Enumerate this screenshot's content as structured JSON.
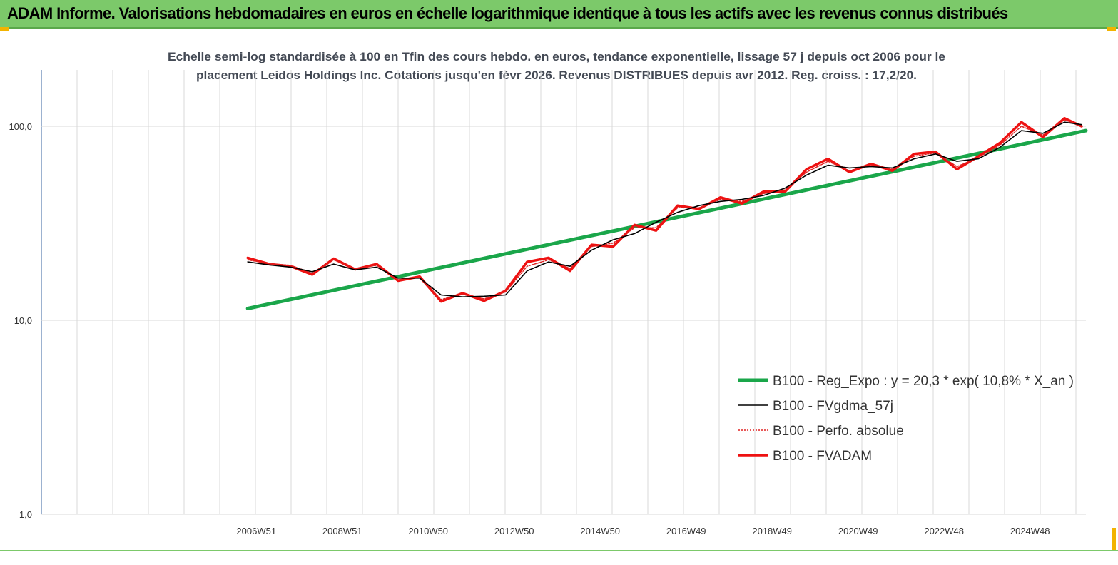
{
  "banner": {
    "title": "ADAM Informe. Valorisations hebdomadaires en euros en échelle logarithmique identique à tous les actifs avec les revenus connus distribués"
  },
  "colors": {
    "banner_bg": "#7cc96a",
    "regression": "#1aa64a",
    "moving_average": "#000000",
    "absolute_perf": "#e02020",
    "fvadam": "#ee1111",
    "corner": "#f2b300"
  },
  "chart_data": {
    "type": "line",
    "subtitle_lines": [
      "Echelle semi-log standardisée à 100 en Tfin des cours hebdo. en euros, tendance exponentielle, lissage 57 j depuis oct 2006 pour le",
      "placement Leidos Holdings Inc. Cotations jusqu'en févr 2026. Revenus DISTRIBUES depuis avr 2012. Reg. croiss. : 17,2/20."
    ],
    "y_scale": "log",
    "ylim": [
      1,
      200
    ],
    "y_ticks": [
      {
        "value": 1,
        "label": "1,0"
      },
      {
        "value": 10,
        "label": "10,0"
      },
      {
        "value": 100,
        "label": "100,0"
      }
    ],
    "xlim": [
      2002,
      2026.3
    ],
    "x_ticks": [
      {
        "x": 2007,
        "label": "2006W51"
      },
      {
        "x": 2009,
        "label": "2008W51"
      },
      {
        "x": 2011,
        "label": "2010W50"
      },
      {
        "x": 2013,
        "label": "2012W50"
      },
      {
        "x": 2015,
        "label": "2014W50"
      },
      {
        "x": 2017,
        "label": "2016W49"
      },
      {
        "x": 2019,
        "label": "2018W49"
      },
      {
        "x": 2021,
        "label": "2020W49"
      },
      {
        "x": 2023,
        "label": "2022W48"
      },
      {
        "x": 2025,
        "label": "2024W48"
      }
    ],
    "grid": "vertical",
    "legend_position": "bottom-right",
    "series": [
      {
        "name": "B100 - Reg_Expo : y = 20,3 * exp( 10,8% *  X_an )",
        "style": "thick-green",
        "x": [
          2006.8,
          2026.3
        ],
        "y": [
          11.5,
          95
        ]
      },
      {
        "name": "B100 - FVgdma_57j",
        "style": "thin-black",
        "x": [
          2006.8,
          2007.3,
          2007.8,
          2008.3,
          2008.8,
          2009.3,
          2009.8,
          2010.3,
          2010.8,
          2011.3,
          2011.8,
          2012.3,
          2012.8,
          2013.3,
          2013.8,
          2014.3,
          2014.8,
          2015.3,
          2015.8,
          2016.3,
          2016.8,
          2017.3,
          2017.8,
          2018.3,
          2018.8,
          2019.3,
          2019.8,
          2020.3,
          2020.8,
          2021.3,
          2021.8,
          2022.3,
          2022.8,
          2023.3,
          2023.8,
          2024.3,
          2024.8,
          2025.3,
          2025.8,
          2026.2
        ],
        "y": [
          20,
          19.3,
          18.8,
          17.8,
          19.5,
          18.2,
          18.8,
          16.5,
          16.5,
          13.5,
          13.2,
          13.3,
          13.5,
          18,
          20,
          19,
          23,
          26,
          28,
          32,
          36,
          39,
          41,
          42,
          44,
          48,
          56,
          63,
          61,
          62,
          61,
          68,
          72,
          66,
          68,
          78,
          95,
          92,
          105,
          102
        ]
      },
      {
        "name": "B100 - Perfo. absolue",
        "style": "dotted-red",
        "x": [
          2006.8,
          2007.3,
          2007.8,
          2008.3,
          2008.8,
          2009.3,
          2009.8,
          2010.3,
          2010.8,
          2011.3,
          2011.8,
          2012.3,
          2012.8,
          2013.3,
          2013.8,
          2014.3,
          2014.8,
          2015.3,
          2015.8,
          2016.3,
          2016.8,
          2017.3,
          2017.8,
          2018.3,
          2018.8,
          2019.3,
          2019.8,
          2020.3,
          2020.8,
          2021.3,
          2021.8,
          2022.3,
          2022.8,
          2023.3,
          2023.8,
          2024.3,
          2024.8,
          2025.3,
          2025.8,
          2026.2
        ],
        "y": [
          20.5,
          19.6,
          19.2,
          17.5,
          20.5,
          18.5,
          19.2,
          16.2,
          16.6,
          12.8,
          13.6,
          12.9,
          14,
          19,
          20.5,
          18.5,
          24,
          25,
          30,
          30,
          38,
          38,
          42,
          41,
          45,
          47,
          58,
          66,
          59,
          63,
          60,
          70,
          73,
          62,
          69,
          80,
          100,
          90,
          108,
          100
        ]
      },
      {
        "name": "B100 - FVADAM",
        "style": "thick-red",
        "x": [
          2006.8,
          2007.3,
          2007.8,
          2008.3,
          2008.8,
          2009.3,
          2009.8,
          2010.3,
          2010.8,
          2011.3,
          2011.8,
          2012.3,
          2012.8,
          2013.3,
          2013.8,
          2014.3,
          2014.8,
          2015.3,
          2015.8,
          2016.3,
          2016.8,
          2017.3,
          2017.8,
          2018.3,
          2018.8,
          2019.3,
          2019.8,
          2020.3,
          2020.8,
          2021.3,
          2021.8,
          2022.3,
          2022.8,
          2023.3,
          2023.8,
          2024.3,
          2024.8,
          2025.3,
          2025.8,
          2026.2
        ],
        "y": [
          21,
          19.5,
          19,
          17.2,
          20.8,
          18.3,
          19.5,
          16,
          16.8,
          12.5,
          13.8,
          12.6,
          14.2,
          20,
          21,
          18,
          24.5,
          24,
          31,
          29,
          39,
          37.5,
          43,
          40,
          46,
          46,
          60,
          68,
          58,
          64,
          59,
          72,
          74,
          60,
          70,
          82,
          105,
          88,
          110,
          100
        ]
      }
    ]
  }
}
